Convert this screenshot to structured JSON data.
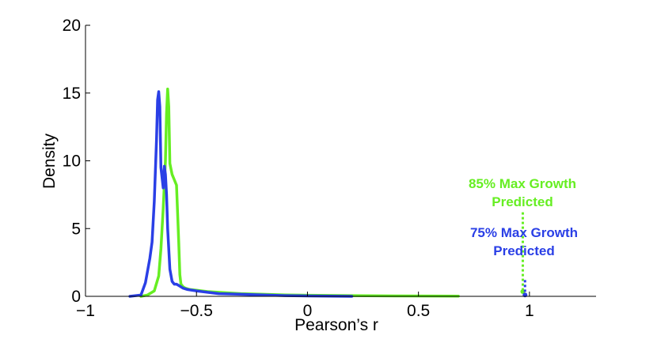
{
  "chart_data": {
    "type": "line",
    "title": "",
    "xlabel": "Pearson’s r",
    "ylabel": "Density",
    "xlim": [
      -1,
      1.3
    ],
    "ylim": [
      0,
      20
    ],
    "xticks": [
      -1,
      -0.5,
      0,
      0.5,
      1
    ],
    "xtick_labels": [
      "−1",
      "−0.5",
      "0",
      "0.5",
      "1"
    ],
    "yticks": [
      0,
      5,
      10,
      15,
      20
    ],
    "ytick_labels": [
      "0",
      "5",
      "10",
      "15",
      "20"
    ],
    "grid": false,
    "series": [
      {
        "name": "85% Max Growth Predicted",
        "color": "#66ee22",
        "x": [
          -0.75,
          -0.72,
          -0.69,
          -0.67,
          -0.66,
          -0.65,
          -0.64,
          -0.635,
          -0.63,
          -0.625,
          -0.62,
          -0.61,
          -0.6,
          -0.59,
          -0.58,
          -0.575,
          -0.57,
          -0.56,
          -0.55,
          -0.53,
          -0.5,
          -0.45,
          -0.4,
          -0.3,
          -0.2,
          -0.1,
          0.0,
          0.2,
          0.4,
          0.68
        ],
        "y": [
          0,
          0.1,
          0.4,
          1.5,
          3.5,
          6.5,
          10.0,
          13.5,
          15.3,
          14.0,
          9.8,
          9.0,
          8.6,
          8.2,
          4.0,
          1.6,
          0.9,
          0.7,
          0.6,
          0.5,
          0.45,
          0.35,
          0.3,
          0.2,
          0.15,
          0.1,
          0.08,
          0.05,
          0.03,
          0.02
        ]
      },
      {
        "name": "75% Max Growth Predicted",
        "color": "#2a3fe6",
        "x": [
          -0.8,
          -0.75,
          -0.73,
          -0.71,
          -0.7,
          -0.69,
          -0.68,
          -0.675,
          -0.67,
          -0.665,
          -0.66,
          -0.65,
          -0.645,
          -0.64,
          -0.635,
          -0.63,
          -0.62,
          -0.61,
          -0.6,
          -0.59,
          -0.58,
          -0.56,
          -0.54,
          -0.5,
          -0.45,
          -0.4,
          -0.3,
          -0.2,
          -0.1,
          0.0,
          0.2
        ],
        "y": [
          0,
          0.1,
          1.0,
          2.8,
          4.0,
          7.0,
          11.5,
          14.5,
          15.1,
          14.0,
          9.5,
          8.0,
          9.6,
          9.0,
          7.5,
          5.0,
          2.0,
          1.1,
          0.9,
          0.9,
          0.8,
          0.6,
          0.5,
          0.4,
          0.3,
          0.2,
          0.15,
          0.1,
          0.05,
          0.03,
          0.0
        ]
      }
    ],
    "annotations": [
      {
        "line1": "85% Max Growth",
        "line2": "Predicted",
        "color": "#66ee22",
        "x": 0.97,
        "y_top": 6.2,
        "y_bottom": 0.35
      },
      {
        "line1": "75% Max Growth",
        "line2": "Predicted",
        "color": "#2a3fe6",
        "x": 0.98,
        "y_top": 1.2,
        "y_bottom": 0.1
      }
    ]
  }
}
